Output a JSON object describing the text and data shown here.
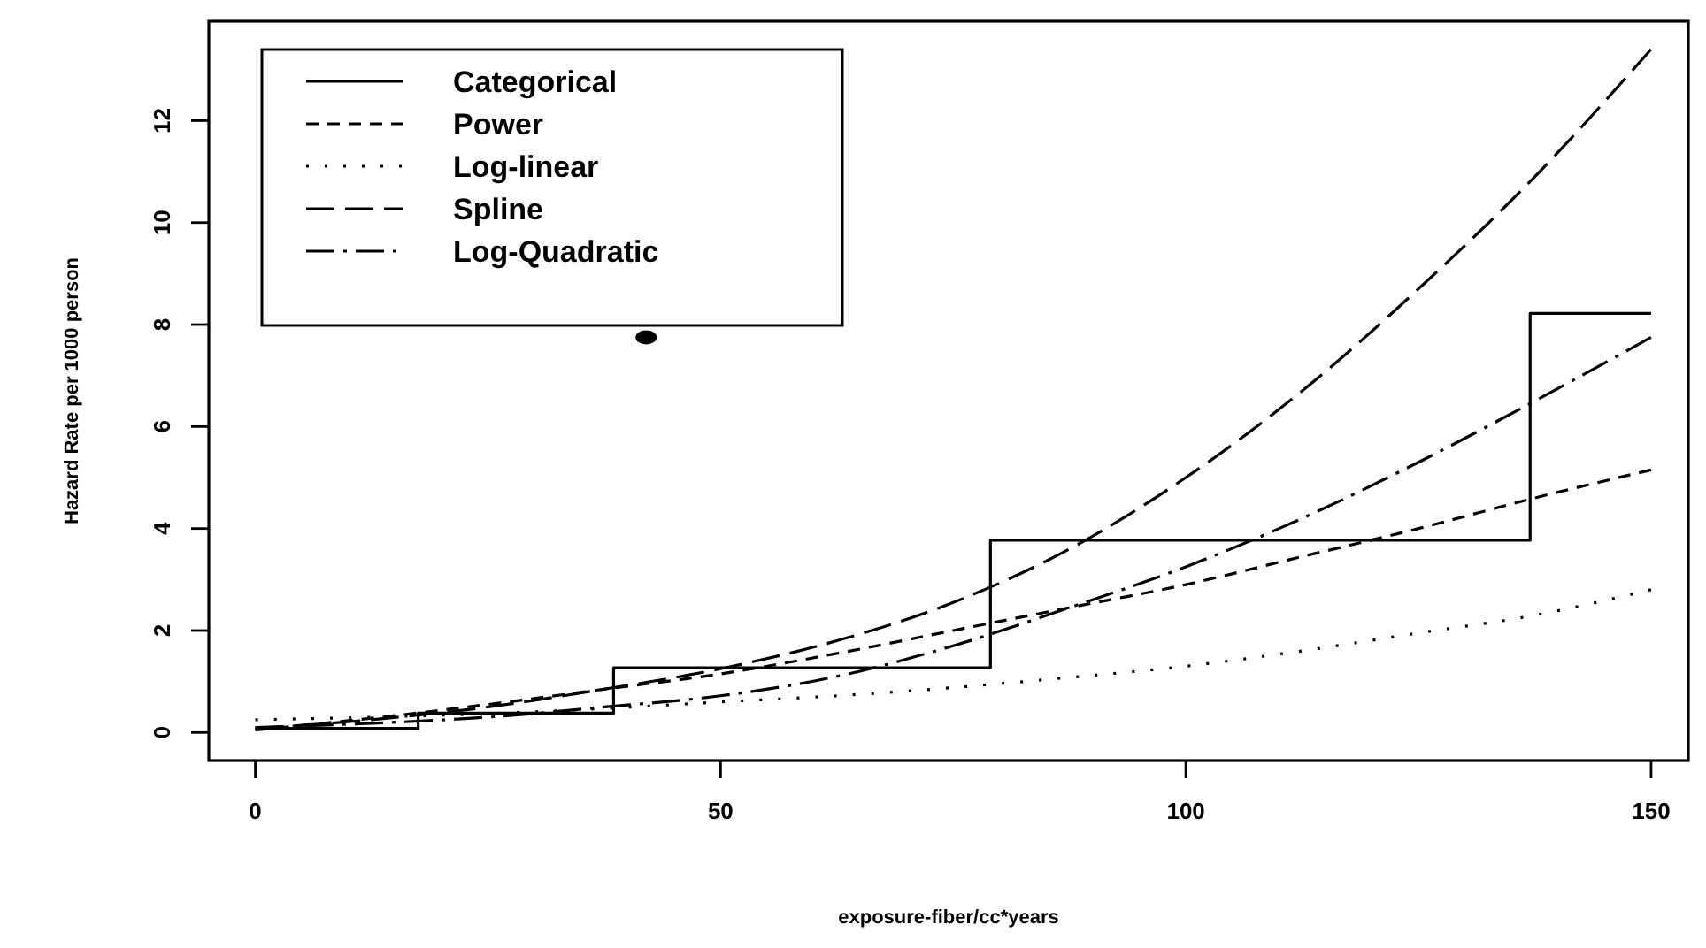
{
  "chart_data": {
    "type": "line",
    "xlabel": "exposure-fiber/cc*years",
    "ylabel": "Hazard Rate per 1000 person",
    "xlim": [
      -5,
      154
    ],
    "ylim": [
      -0.55,
      13.95
    ],
    "xticks": [
      0,
      50,
      100,
      150
    ],
    "yticks": [
      0,
      2,
      4,
      6,
      8,
      10,
      12
    ],
    "grid": false,
    "legend": "top left",
    "series": [
      {
        "name": "Categorical",
        "type": "step",
        "color": "#000000",
        "line_style": "solid",
        "x": [
          0,
          17.5,
          38.5,
          79,
          137,
          150
        ],
        "values": [
          0.08,
          0.38,
          1.27,
          3.77,
          8.22,
          8.22
        ]
      },
      {
        "name": "Power",
        "color": "#000000",
        "line_style": "dashed",
        "x": [
          0,
          12.5,
          25,
          37.5,
          50,
          62.5,
          75,
          87.5,
          100,
          112.5,
          125,
          137.5,
          150
        ],
        "values": [
          0.05,
          0.28,
          0.55,
          0.85,
          1.15,
          1.55,
          2.0,
          2.45,
          2.9,
          3.45,
          4.0,
          4.6,
          5.15
        ]
      },
      {
        "name": "Log-linear",
        "color": "#000000",
        "line_style": "dotted",
        "x": [
          0,
          12.5,
          25,
          37.5,
          50,
          62.5,
          75,
          87.5,
          100,
          112.5,
          125,
          137.5,
          150
        ],
        "values": [
          0.25,
          0.3,
          0.37,
          0.47,
          0.6,
          0.72,
          0.88,
          1.08,
          1.3,
          1.6,
          1.95,
          2.3,
          2.8
        ]
      },
      {
        "name": "Spline",
        "color": "#000000",
        "line_style": "longdash",
        "x": [
          0,
          12.5,
          25,
          37.5,
          50,
          62.5,
          75,
          87.5,
          100,
          112.5,
          125,
          137.5,
          150
        ],
        "values": [
          0.08,
          0.25,
          0.5,
          0.85,
          1.25,
          1.8,
          2.55,
          3.6,
          5.0,
          6.7,
          8.7,
          10.9,
          13.4
        ]
      },
      {
        "name": "Log-Quadratic",
        "color": "#000000",
        "line_style": "dashdot",
        "x": [
          0,
          12.5,
          25,
          37.5,
          50,
          62.5,
          75,
          87.5,
          100,
          112.5,
          125,
          137.5,
          150
        ],
        "values": [
          0.1,
          0.18,
          0.3,
          0.5,
          0.72,
          1.1,
          1.7,
          2.45,
          3.25,
          4.2,
          5.3,
          6.5,
          7.75
        ]
      },
      {
        "type": "scatter",
        "color": "#000000",
        "marker": "circle",
        "x": [
          42
        ],
        "values": [
          7.75
        ]
      }
    ]
  }
}
